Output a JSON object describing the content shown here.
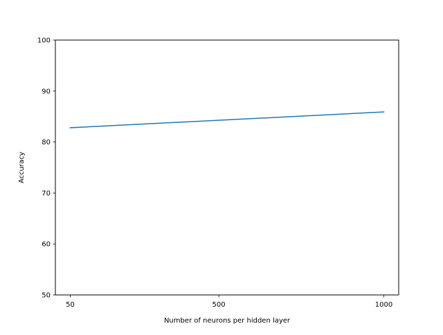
{
  "chart_data": {
    "type": "line",
    "title": "",
    "xlabel": "Number of neurons per hidden layer",
    "ylabel": "Accuracy",
    "x": [
      50,
      1000
    ],
    "xlim": [
      5,
      1045
    ],
    "xticks": [
      50,
      500,
      1000
    ],
    "xtick_labels": [
      "50",
      "500",
      "1000"
    ],
    "ylim": [
      50,
      100
    ],
    "yticks": [
      50,
      60,
      70,
      80,
      90,
      100
    ],
    "ytick_labels": [
      "50",
      "60",
      "70",
      "80",
      "90",
      "100"
    ],
    "series": [
      {
        "values": [
          82.8,
          85.9
        ],
        "color": "#1f77b4"
      }
    ],
    "grid": false,
    "legend": "none"
  }
}
